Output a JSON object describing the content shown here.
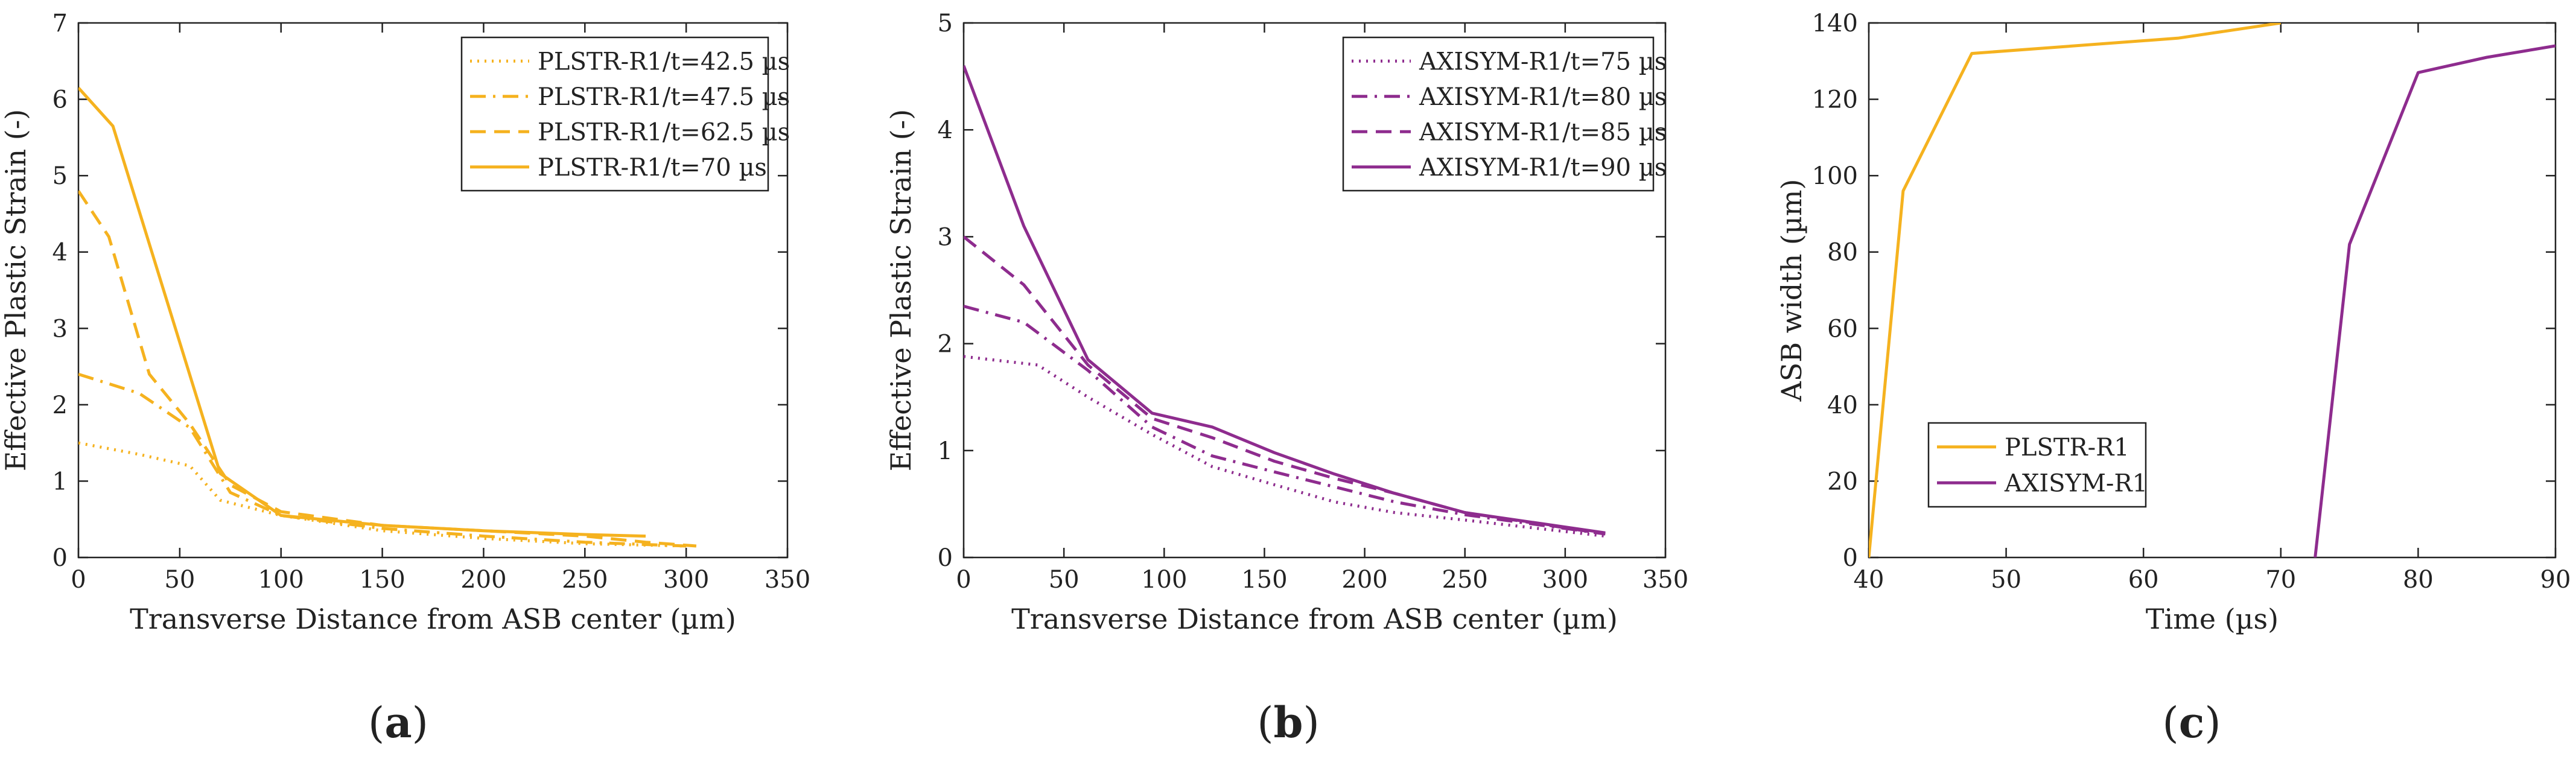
{
  "colors": {
    "plstr": "#f5b21f",
    "axisym": "#8e2c8e",
    "axes": "#222222"
  },
  "chart_data": [
    {
      "type": "line",
      "caption_letter": "a",
      "xlabel": "Transverse Distance from ASB center (µm)",
      "ylabel": "Effective Plastic Strain (-)",
      "xlim": [
        0,
        350
      ],
      "ylim": [
        0,
        7
      ],
      "xticks": [
        "0",
        "50",
        "100",
        "150",
        "200",
        "250",
        "300",
        "350"
      ],
      "yticks": [
        "0",
        "1",
        "2",
        "3",
        "4",
        "5",
        "6",
        "7"
      ],
      "legend_position": "top-right",
      "series": [
        {
          "name": "PLSTR-R1/t=42.5 µs",
          "color": "plstr",
          "dash": "dotted",
          "x": [
            0,
            30,
            55,
            70,
            100,
            150,
            200,
            250,
            300
          ],
          "y": [
            1.5,
            1.35,
            1.2,
            0.75,
            0.55,
            0.35,
            0.25,
            0.18,
            0.15
          ]
        },
        {
          "name": "PLSTR-R1/t=47.5 µs",
          "color": "plstr",
          "dash": "dashdot",
          "x": [
            0,
            30,
            55,
            75,
            100,
            150,
            200,
            250,
            300
          ],
          "y": [
            2.4,
            2.15,
            1.7,
            0.85,
            0.55,
            0.38,
            0.28,
            0.2,
            0.15
          ]
        },
        {
          "name": "PLSTR-R1/t=62.5 µs",
          "color": "plstr",
          "dash": "dashed",
          "x": [
            0,
            15,
            35,
            55,
            75,
            100,
            150,
            200,
            250,
            280,
            305
          ],
          "y": [
            4.8,
            4.2,
            2.4,
            1.75,
            0.95,
            0.6,
            0.42,
            0.35,
            0.28,
            0.2,
            0.15
          ]
        },
        {
          "name": "PLSTR-R1/t=70 µs",
          "color": "plstr",
          "dash": "solid",
          "x": [
            0,
            17,
            70,
            100,
            150,
            200,
            250,
            280
          ],
          "y": [
            6.15,
            5.65,
            1.1,
            0.55,
            0.42,
            0.35,
            0.3,
            0.28
          ]
        }
      ]
    },
    {
      "type": "line",
      "caption_letter": "b",
      "xlabel": "Transverse Distance from ASB center (µm)",
      "ylabel": "Effective Plastic Strain (-)",
      "xlim": [
        0,
        350
      ],
      "ylim": [
        0,
        5
      ],
      "xticks": [
        "0",
        "50",
        "100",
        "150",
        "200",
        "250",
        "300",
        "350"
      ],
      "yticks": [
        "0",
        "1",
        "2",
        "3",
        "4",
        "5"
      ],
      "legend_position": "top-right",
      "series": [
        {
          "name": "AXISYM-R1/t=75 µs",
          "color": "axisym",
          "dash": "dotted",
          "x": [
            0,
            37,
            62,
            94,
            124,
            155,
            185,
            215,
            250,
            320
          ],
          "y": [
            1.88,
            1.8,
            1.5,
            1.15,
            0.85,
            0.68,
            0.52,
            0.42,
            0.35,
            0.2
          ]
        },
        {
          "name": "AXISYM-R1/t=80 µs",
          "color": "axisym",
          "dash": "dashdot",
          "x": [
            0,
            30,
            62,
            94,
            124,
            155,
            185,
            215,
            250,
            320
          ],
          "y": [
            2.35,
            2.2,
            1.75,
            1.22,
            0.95,
            0.8,
            0.66,
            0.52,
            0.4,
            0.22
          ]
        },
        {
          "name": "AXISYM-R1/t=85 µs",
          "color": "axisym",
          "dash": "dashed",
          "x": [
            0,
            30,
            62,
            94,
            124,
            155,
            185,
            215,
            250,
            320
          ],
          "y": [
            3.0,
            2.55,
            1.8,
            1.3,
            1.12,
            0.9,
            0.74,
            0.6,
            0.42,
            0.22
          ]
        },
        {
          "name": "AXISYM-R1/t=90 µs",
          "color": "axisym",
          "dash": "solid",
          "x": [
            0,
            30,
            62,
            94,
            124,
            155,
            185,
            215,
            250,
            320
          ],
          "y": [
            4.6,
            3.1,
            1.85,
            1.35,
            1.22,
            0.98,
            0.78,
            0.6,
            0.42,
            0.23
          ]
        }
      ]
    },
    {
      "type": "line",
      "caption_letter": "c",
      "xlabel": "Time (µs)",
      "ylabel": "ASB width (µm)",
      "xlim": [
        40,
        90
      ],
      "ylim": [
        0,
        140
      ],
      "xticks": [
        "40",
        "50",
        "60",
        "70",
        "80",
        "90"
      ],
      "yticks": [
        "0",
        "20",
        "40",
        "60",
        "80",
        "100",
        "120",
        "140"
      ],
      "legend_position": "bottom-left",
      "series": [
        {
          "name": "PLSTR-R1",
          "color": "plstr",
          "dash": "solid",
          "x": [
            40,
            42.5,
            47.5,
            62.5,
            70
          ],
          "y": [
            0,
            96,
            132,
            136,
            140
          ]
        },
        {
          "name": "AXISYM-R1",
          "color": "axisym",
          "dash": "solid",
          "x": [
            72.5,
            75,
            80,
            85,
            90
          ],
          "y": [
            0,
            82,
            127,
            131,
            134
          ]
        }
      ]
    }
  ]
}
